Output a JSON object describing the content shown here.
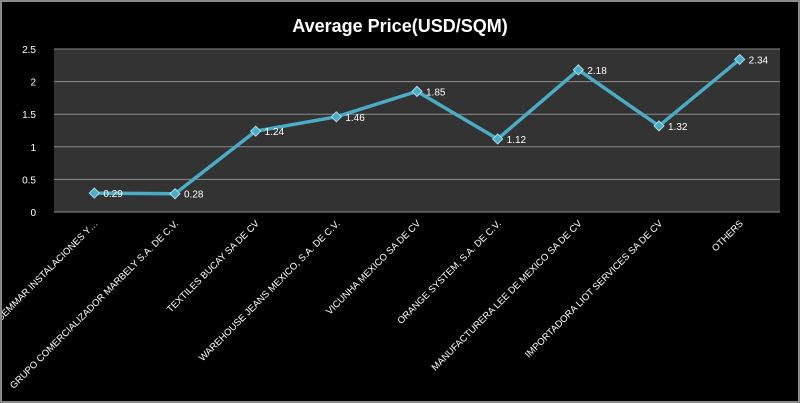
{
  "chart_data": {
    "type": "line",
    "title": "Average Price(USD/SQM)",
    "categories": [
      "BEMMAR INSTALACIONES Y…",
      "GRUPO COMERCIALIZADOR MARBELY S.A. DE C.V.",
      "TEXTILES BUCAY SA DE CV",
      "WAREHOUSE JEANS MEXICO, S.A. DE C.V.",
      "VICUNHA MEXICO SA DE CV",
      "ORANGE SYSTEM, S.A. DE C.V.",
      "MANUFACTURERA LEE DE MEXICO SA DE CV",
      "IMPORTADORA LIOT SERVICES SA DE CV",
      "OTHERS"
    ],
    "series": [
      {
        "values": [
          0.29,
          0.28,
          1.24,
          1.46,
          1.85,
          1.12,
          2.18,
          1.32,
          2.34
        ],
        "data_labels": [
          "0.29",
          "0.28",
          "1.24",
          "1.46",
          "1.85",
          "1.12",
          "2.18",
          "1.32",
          "2.34"
        ]
      }
    ],
    "ylim": [
      0,
      2.5
    ],
    "yticks": [
      "0",
      "0.5",
      "1",
      "1.5",
      "2",
      "2.5"
    ],
    "grid": true,
    "legend": "none",
    "colors": {
      "background": "#000000",
      "plot_area": "#333333",
      "gridline": "#8c8c8c",
      "line": "#4bacc6",
      "marker": "#4bacc6",
      "text": "#ffffff"
    }
  }
}
